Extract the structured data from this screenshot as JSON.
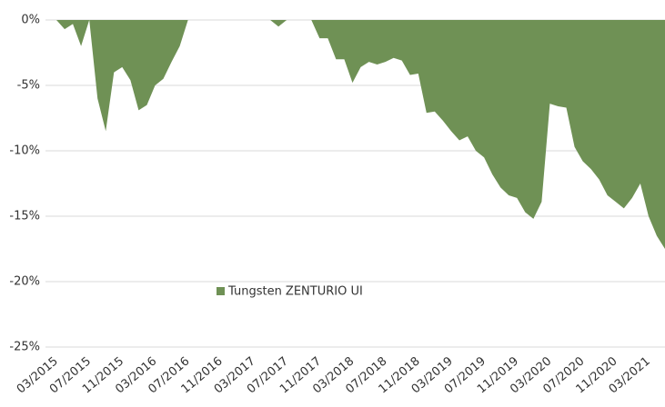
{
  "chart_data": {
    "type": "area",
    "categories": [
      "03/2015",
      null,
      null,
      null,
      "07/2015",
      null,
      null,
      null,
      "11/2015",
      null,
      null,
      null,
      "03/2016",
      null,
      null,
      null,
      "07/2016",
      null,
      null,
      null,
      "11/2016",
      null,
      null,
      null,
      "03/2017",
      null,
      null,
      null,
      "07/2017",
      null,
      null,
      null,
      "11/2017",
      null,
      null,
      null,
      "03/2018",
      null,
      null,
      null,
      "07/2018",
      null,
      null,
      null,
      "11/2018",
      null,
      null,
      null,
      "03/2019",
      null,
      null,
      null,
      "07/2019",
      null,
      null,
      null,
      "11/2019",
      null,
      null,
      null,
      "03/2020",
      null,
      null,
      null,
      "07/2020",
      null,
      null,
      null,
      "11/2020",
      null,
      null,
      null,
      "03/2021",
      null,
      null
    ],
    "series": [
      {
        "name": "Tungsten ZENTURIO UI",
        "color": "#6f9155",
        "values": [
          0,
          -0.7,
          -0.3,
          -2,
          0,
          -6,
          -8.5,
          -4,
          -3.6,
          -4.6,
          -6.9,
          -6.5,
          -5,
          -4.5,
          -3.2,
          -2,
          0,
          0,
          0,
          0,
          0,
          0,
          0,
          0,
          0,
          0,
          0,
          -0.5,
          0,
          0,
          0,
          0,
          -1.4,
          -1.4,
          -3,
          -3,
          -4.8,
          -3.6,
          -3.2,
          -3.4,
          -3.2,
          -2.9,
          -3.1,
          -4.2,
          -4.1,
          -7.1,
          -7,
          -7.7,
          -8.5,
          -9.2,
          -8.9,
          -10,
          -10.5,
          -11.8,
          -12.8,
          -13.4,
          -13.6,
          -14.7,
          -15.2,
          -13.9,
          -6.4,
          -6.6,
          -6.7,
          -9.7,
          -10.8,
          -11.4,
          -12.2,
          -13.4,
          -13.9,
          -14.4,
          -13.6,
          -12.5,
          -15,
          -16.5,
          -17.5
        ]
      }
    ],
    "ylim": [
      -25,
      0
    ],
    "yticks": [
      {
        "value": 0,
        "label": "0%"
      },
      {
        "value": -5,
        "label": "-5%"
      },
      {
        "value": -10,
        "label": "-10%"
      },
      {
        "value": -15,
        "label": "-15%"
      },
      {
        "value": -20,
        "label": "-20%"
      },
      {
        "value": -25,
        "label": "-25%"
      }
    ],
    "grid": true
  }
}
